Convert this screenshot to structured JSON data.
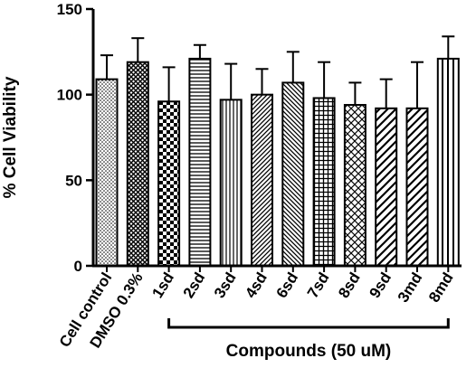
{
  "chart_data": {
    "type": "bar",
    "title": "",
    "xlabel": "",
    "ylabel": "% Cell Viability",
    "ylim": [
      0,
      150
    ],
    "yticks": [
      0,
      50,
      100,
      150
    ],
    "grid": false,
    "categories": [
      "Cell control",
      "DMSO 0.3%",
      "1sd",
      "2sd",
      "3sd",
      "4sd",
      "6sd",
      "7sd",
      "8sd",
      "9sd",
      "3md",
      "8md"
    ],
    "values": [
      109,
      119,
      96,
      121,
      97,
      100,
      107,
      98,
      94,
      92,
      92,
      121
    ],
    "errors": [
      14,
      14,
      20,
      8,
      21,
      15,
      18,
      21,
      13,
      17,
      27,
      13
    ],
    "patterns": [
      "dots-fine",
      "crosshatch-diamond",
      "checker",
      "horizontal",
      "vertical",
      "diagonal-up",
      "diagonal-down",
      "grid",
      "diamond-lattice",
      "diagonal-up-wide",
      "diagonal-up-wide",
      "vertical-wide"
    ],
    "group_annotation": {
      "label": "Compounds (50 uM)",
      "from_category": "1sd",
      "to_category": "8md"
    }
  }
}
